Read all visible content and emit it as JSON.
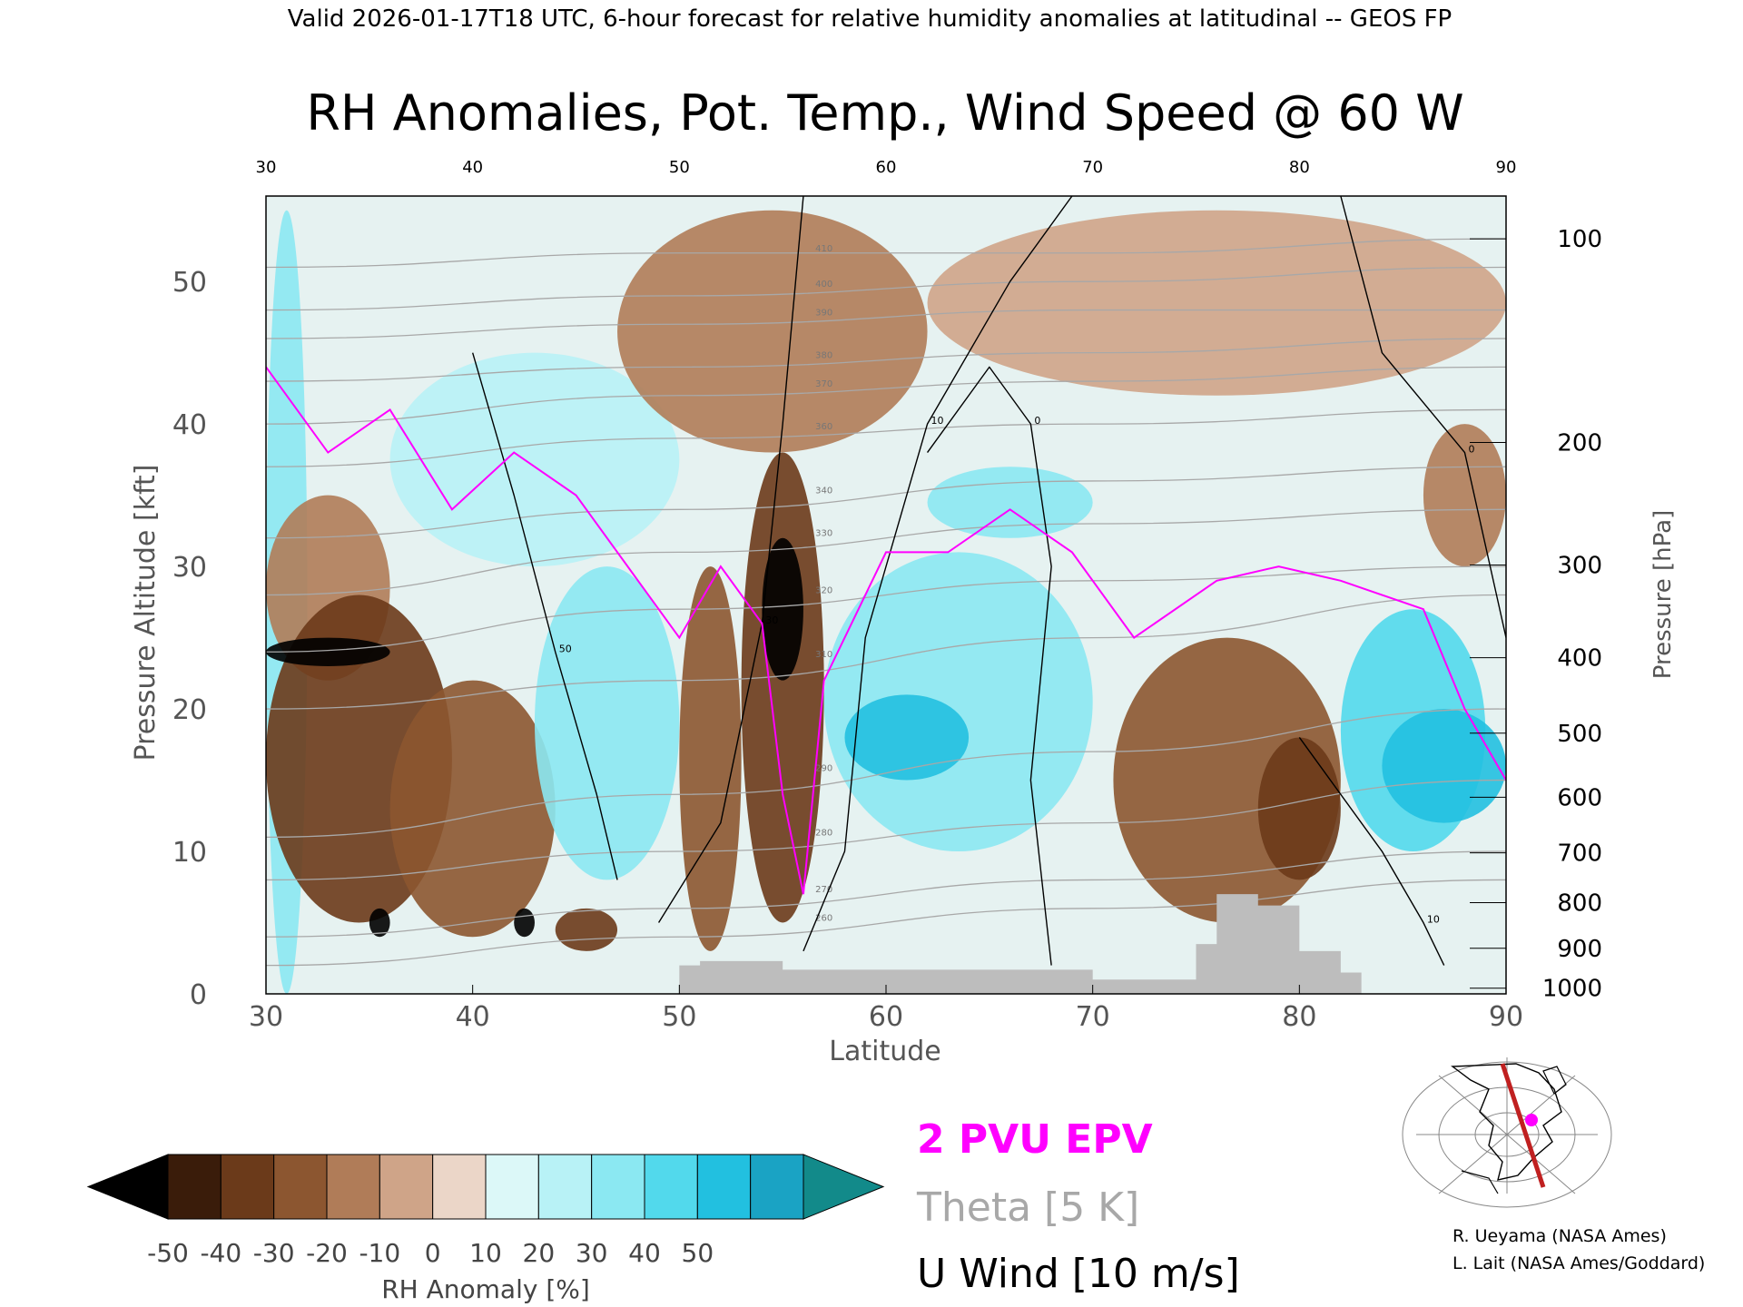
{
  "header": "Valid 2026-01-17T18 UTC, 6-hour forecast for relative humidity anomalies at latitudinal -- GEOS FP",
  "colors": {
    "epv": "#ff00ff",
    "theta": "#a8a8a8",
    "wind": "#000000",
    "terrain": "#bdbdbd"
  },
  "chart_data": {
    "type": "heatmap",
    "title": "RH Anomalies, Pot. Temp., Wind Speed @ 60 W",
    "xlabel": "Latitude",
    "ylabel": "Pressure Altitude [kft]",
    "y2label": "Pressure [hPa]",
    "xlim": [
      30,
      90
    ],
    "ylim": [
      0,
      56
    ],
    "x_ticks": [
      "30",
      "40",
      "50",
      "60",
      "70",
      "80",
      "90"
    ],
    "top_x_ticks": [
      "30",
      "40",
      "50",
      "60",
      "70",
      "80",
      "90"
    ],
    "y_ticks": [
      {
        "v": 0,
        "label": "0"
      },
      {
        "v": 10,
        "label": "10"
      },
      {
        "v": 20,
        "label": "20"
      },
      {
        "v": 30,
        "label": "30"
      },
      {
        "v": 40,
        "label": "40"
      },
      {
        "v": 50,
        "label": "50"
      }
    ],
    "pressure_ticks": [
      {
        "kft": 53.0,
        "label": "100"
      },
      {
        "kft": 38.7,
        "label": "200"
      },
      {
        "kft": 30.1,
        "label": "300"
      },
      {
        "kft": 23.6,
        "label": "400"
      },
      {
        "kft": 18.3,
        "label": "500"
      },
      {
        "kft": 13.8,
        "label": "600"
      },
      {
        "kft": 9.9,
        "label": "700"
      },
      {
        "kft": 6.4,
        "label": "800"
      },
      {
        "kft": 3.2,
        "label": "900"
      },
      {
        "kft": 0.4,
        "label": "1000"
      }
    ],
    "colorbar": {
      "label": "RH Anomaly [%]",
      "tick_labels": [
        "-50",
        "-40",
        "-30",
        "-20",
        "-10",
        "0",
        "10",
        "20",
        "30",
        "40",
        "50"
      ],
      "colors": [
        "#000000",
        "#3a1c0a",
        "#6b3a1a",
        "#8c5630",
        "#b07c58",
        "#cfa488",
        "#ebd6c8",
        "#dcf8f8",
        "#b8f2f6",
        "#8be8f2",
        "#52d9ec",
        "#22c0e0",
        "#1aa3c4",
        "#128a8a"
      ]
    },
    "rh_regions": [
      {
        "lat": [
          30,
          32
        ],
        "kft": [
          0,
          55
        ],
        "rh": 35
      },
      {
        "lat": [
          30,
          36
        ],
        "kft": [
          22,
          35
        ],
        "rh": -20
      },
      {
        "lat": [
          30,
          39
        ],
        "kft": [
          5,
          28
        ],
        "rh": -35
      },
      {
        "lat": [
          30,
          36
        ],
        "kft": [
          23,
          25
        ],
        "rh": -50
      },
      {
        "lat": [
          36,
          44
        ],
        "kft": [
          4,
          22
        ],
        "rh": -30
      },
      {
        "lat": [
          35,
          36
        ],
        "kft": [
          4,
          6
        ],
        "rh": -50
      },
      {
        "lat": [
          42,
          43
        ],
        "kft": [
          4,
          6
        ],
        "rh": -50
      },
      {
        "lat": [
          44,
          47
        ],
        "kft": [
          3,
          6
        ],
        "rh": -40
      },
      {
        "lat": [
          36,
          50
        ],
        "kft": [
          30,
          45
        ],
        "rh": 25
      },
      {
        "lat": [
          43,
          50
        ],
        "kft": [
          8,
          30
        ],
        "rh": 30
      },
      {
        "lat": [
          50,
          53
        ],
        "kft": [
          3,
          30
        ],
        "rh": -30
      },
      {
        "lat": [
          53,
          57
        ],
        "kft": [
          5,
          38
        ],
        "rh": -40
      },
      {
        "lat": [
          54,
          56
        ],
        "kft": [
          22,
          32
        ],
        "rh": -50
      },
      {
        "lat": [
          47,
          62
        ],
        "kft": [
          38,
          55
        ],
        "rh": -15
      },
      {
        "lat": [
          57,
          70
        ],
        "kft": [
          10,
          31
        ],
        "rh": 35
      },
      {
        "lat": [
          58,
          64
        ],
        "kft": [
          15,
          21
        ],
        "rh": 50
      },
      {
        "lat": [
          62,
          70
        ],
        "kft": [
          32,
          37
        ],
        "rh": 30
      },
      {
        "lat": [
          71,
          82
        ],
        "kft": [
          5,
          25
        ],
        "rh": -25
      },
      {
        "lat": [
          78,
          82
        ],
        "kft": [
          8,
          18
        ],
        "rh": -35
      },
      {
        "lat": [
          82,
          89
        ],
        "kft": [
          10,
          27
        ],
        "rh": 40
      },
      {
        "lat": [
          84,
          90
        ],
        "kft": [
          12,
          20
        ],
        "rh": 50
      },
      {
        "lat": [
          86,
          90
        ],
        "kft": [
          30,
          40
        ],
        "rh": -15
      },
      {
        "lat": [
          62,
          90
        ],
        "kft": [
          42,
          55
        ],
        "rh": -5
      }
    ],
    "epv_2pvu": [
      {
        "lat": 30,
        "kft": 44
      },
      {
        "lat": 33,
        "kft": 38
      },
      {
        "lat": 36,
        "kft": 41
      },
      {
        "lat": 39,
        "kft": 34
      },
      {
        "lat": 42,
        "kft": 38
      },
      {
        "lat": 45,
        "kft": 35
      },
      {
        "lat": 48,
        "kft": 29
      },
      {
        "lat": 50,
        "kft": 25
      },
      {
        "lat": 52,
        "kft": 30
      },
      {
        "lat": 54,
        "kft": 26
      },
      {
        "lat": 55,
        "kft": 14
      },
      {
        "lat": 56,
        "kft": 7
      },
      {
        "lat": 57,
        "kft": 22
      },
      {
        "lat": 60,
        "kft": 31
      },
      {
        "lat": 63,
        "kft": 31
      },
      {
        "lat": 66,
        "kft": 34
      },
      {
        "lat": 69,
        "kft": 31
      },
      {
        "lat": 72,
        "kft": 25
      },
      {
        "lat": 76,
        "kft": 29
      },
      {
        "lat": 79,
        "kft": 30
      },
      {
        "lat": 82,
        "kft": 29
      },
      {
        "lat": 86,
        "kft": 27
      },
      {
        "lat": 88,
        "kft": 20
      },
      {
        "lat": 90,
        "kft": 15
      }
    ],
    "u_wind_contours": [
      {
        "label": "10",
        "points": [
          {
            "lat": 56,
            "kft": 3
          },
          {
            "lat": 58,
            "kft": 10
          },
          {
            "lat": 59,
            "kft": 25
          },
          {
            "lat": 62,
            "kft": 40
          },
          {
            "lat": 66,
            "kft": 50
          },
          {
            "lat": 69,
            "kft": 56
          }
        ]
      },
      {
        "label": "30",
        "points": [
          {
            "lat": 49,
            "kft": 5
          },
          {
            "lat": 52,
            "kft": 12
          },
          {
            "lat": 54,
            "kft": 26
          },
          {
            "lat": 55,
            "kft": 40
          },
          {
            "lat": 56,
            "kft": 56
          }
        ]
      },
      {
        "label": "0",
        "points": [
          {
            "lat": 68,
            "kft": 2
          },
          {
            "lat": 67,
            "kft": 15
          },
          {
            "lat": 68,
            "kft": 30
          },
          {
            "lat": 67,
            "kft": 40
          },
          {
            "lat": 65,
            "kft": 44
          },
          {
            "lat": 62,
            "kft": 38
          }
        ]
      },
      {
        "label": "10",
        "points": [
          {
            "lat": 80,
            "kft": 18
          },
          {
            "lat": 84,
            "kft": 10
          },
          {
            "lat": 86,
            "kft": 5
          },
          {
            "lat": 87,
            "kft": 2
          }
        ]
      },
      {
        "label": "0",
        "points": [
          {
            "lat": 82,
            "kft": 56
          },
          {
            "lat": 84,
            "kft": 45
          },
          {
            "lat": 88,
            "kft": 38
          },
          {
            "lat": 90,
            "kft": 25
          }
        ]
      },
      {
        "label": "50",
        "points": [
          {
            "lat": 40,
            "kft": 45
          },
          {
            "lat": 42,
            "kft": 35
          },
          {
            "lat": 44,
            "kft": 24
          },
          {
            "lat": 46,
            "kft": 14
          },
          {
            "lat": 47,
            "kft": 8
          }
        ]
      }
    ],
    "theta_contours": [
      {
        "label": "260",
        "kft": [
          2,
          4,
          6,
          8
        ]
      },
      {
        "label": "270",
        "kft": [
          4,
          6,
          8,
          10
        ]
      },
      {
        "label": "280",
        "kft": [
          8,
          10,
          12,
          15
        ]
      },
      {
        "label": "290",
        "kft": [
          11,
          14,
          17,
          20
        ]
      },
      {
        "label": "310",
        "kft": [
          20,
          22,
          25,
          28
        ]
      },
      {
        "label": "320",
        "kft": [
          24,
          27,
          29,
          30
        ]
      },
      {
        "label": "330",
        "kft": [
          28,
          31,
          33,
          34
        ]
      },
      {
        "label": "340",
        "kft": [
          32,
          34,
          36,
          37
        ]
      },
      {
        "label": "360",
        "kft": [
          37,
          39,
          40,
          41
        ]
      },
      {
        "label": "370",
        "kft": [
          40,
          42,
          43,
          44
        ]
      },
      {
        "label": "380",
        "kft": [
          43,
          44,
          45,
          46
        ]
      },
      {
        "label": "390",
        "kft": [
          46,
          47,
          48,
          48
        ]
      },
      {
        "label": "400",
        "kft": [
          48,
          49,
          50,
          51
        ]
      },
      {
        "label": "410",
        "kft": [
          51,
          52,
          52,
          53
        ]
      }
    ],
    "terrain": [
      {
        "lat": 50,
        "kft": 2
      },
      {
        "lat": 51,
        "kft": 2
      },
      {
        "lat": 51,
        "kft": 2.3
      },
      {
        "lat": 55,
        "kft": 2.3
      },
      {
        "lat": 55,
        "kft": 1.7
      },
      {
        "lat": 70,
        "kft": 1.7
      },
      {
        "lat": 70,
        "kft": 1
      },
      {
        "lat": 75,
        "kft": 1
      },
      {
        "lat": 75,
        "kft": 3.5
      },
      {
        "lat": 76,
        "kft": 3.5
      },
      {
        "lat": 76,
        "kft": 7
      },
      {
        "lat": 78,
        "kft": 7
      },
      {
        "lat": 78,
        "kft": 6.2
      },
      {
        "lat": 80,
        "kft": 6.2
      },
      {
        "lat": 80,
        "kft": 3
      },
      {
        "lat": 82,
        "kft": 3
      },
      {
        "lat": 82,
        "kft": 1.5
      },
      {
        "lat": 83,
        "kft": 1.5
      },
      {
        "lat": 83,
        "kft": 0
      }
    ]
  },
  "legend": {
    "epv": "2 PVU EPV",
    "theta": "Theta [5 K]",
    "wind": "U Wind [10 m/s]"
  },
  "credits": {
    "line1": "R. Ueyama (NASA Ames)",
    "line2": "L. Lait (NASA Ames/Goddard)"
  }
}
